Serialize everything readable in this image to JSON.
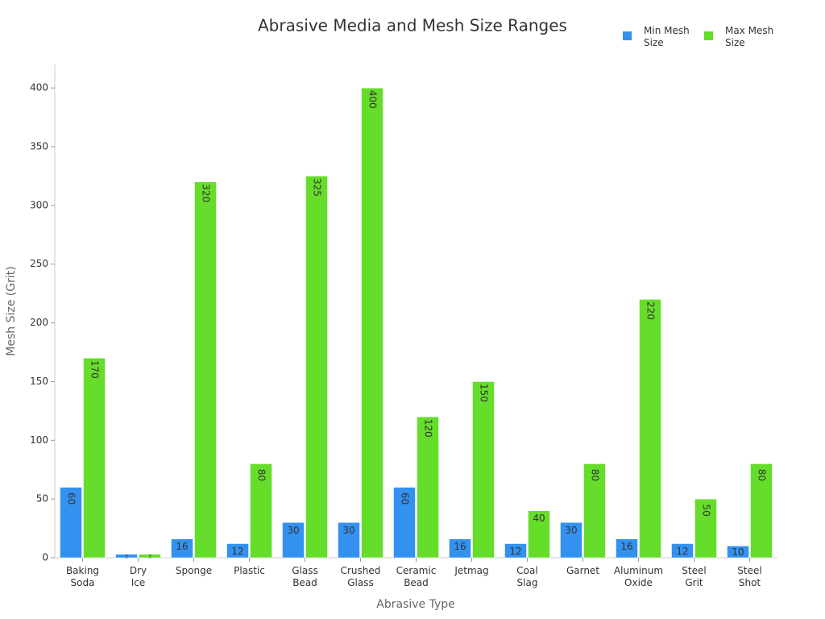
{
  "chart_data": {
    "type": "bar",
    "title": "Abrasive Media and Mesh Size Ranges",
    "x_label": "Abrasive Type",
    "y_label": "Mesh Size (Grit)",
    "categories": [
      "Baking Soda",
      "Dry Ice",
      "Sponge",
      "Plastic",
      "Glass Bead",
      "Crushed Glass",
      "Ceramic Bead",
      "Jetmag",
      "Coal Slag",
      "Garnet",
      "Aluminum Oxide",
      "Steel Grit",
      "Steel Shot"
    ],
    "series": [
      {
        "name": "Min Mesh Size",
        "color": "#3391f0",
        "values": [
          60,
          3,
          16,
          12,
          30,
          30,
          60,
          16,
          12,
          30,
          16,
          12,
          10
        ]
      },
      {
        "name": "Max Mesh Size",
        "color": "#66dd2a",
        "values": [
          170,
          3,
          320,
          80,
          325,
          400,
          120,
          150,
          40,
          80,
          220,
          50,
          80
        ]
      }
    ],
    "ylim": [
      0,
      420
    ],
    "yticks": [
      0,
      50,
      100,
      150,
      200,
      250,
      300,
      350,
      400
    ],
    "legend": "top-right",
    "grid": false
  }
}
